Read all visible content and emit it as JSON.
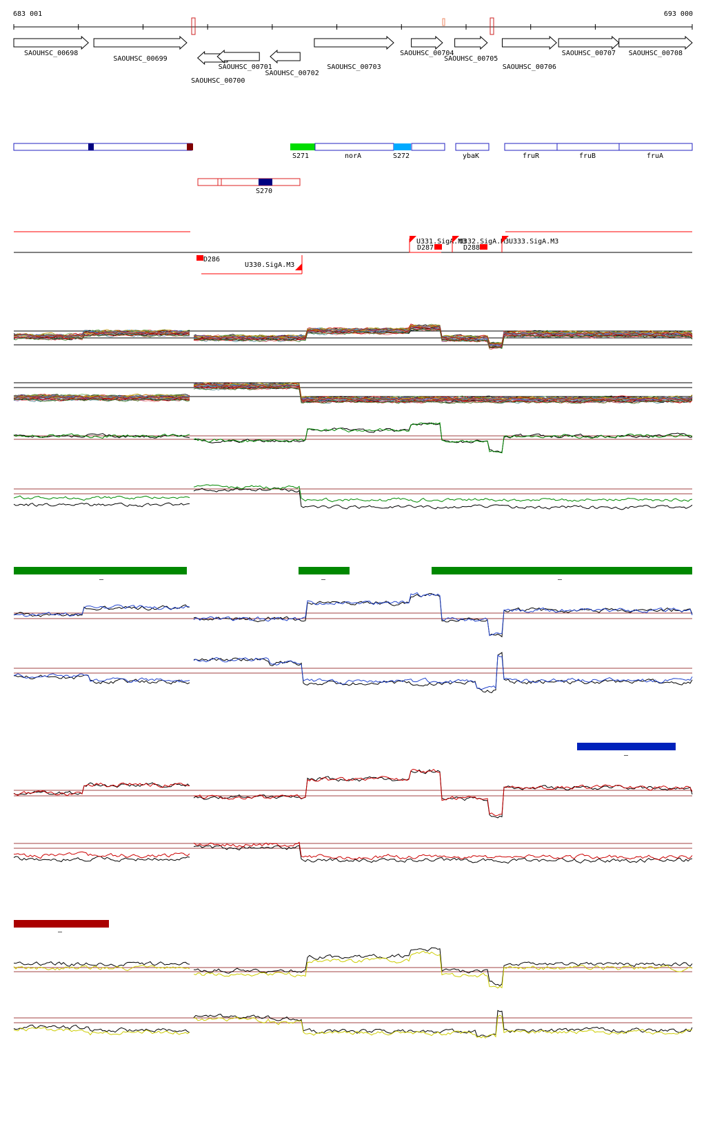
{
  "coords": {
    "start": "683 001",
    "end": "693 000"
  },
  "colors": {
    "blue_box": "#2020c0",
    "dark_blue_mark": "#000080",
    "dark_red_mark": "#800000",
    "green_region": "#00dd00",
    "cyan_region": "#00aaff",
    "red": "#ff0000",
    "threshold_brown": "#a04040",
    "green_bar": "#008800",
    "blue_bar": "#0022bb",
    "darkred_bar": "#aa0000",
    "yellow": "#bbbb00"
  },
  "genes_forward": [
    {
      "name": "SAOUHSC_00698",
      "start": 0.0,
      "end": 0.11
    },
    {
      "name": "SAOUHSC_00699",
      "start": 0.118,
      "end": 0.255
    },
    {
      "name": "SAOUHSC_00703",
      "start": 0.443,
      "end": 0.56
    },
    {
      "name": "SAOUHSC_00704",
      "start": 0.586,
      "end": 0.632
    },
    {
      "name": "SAOUHSC_00705",
      "start": 0.65,
      "end": 0.698
    },
    {
      "name": "SAOUHSC_00706",
      "start": 0.72,
      "end": 0.8
    },
    {
      "name": "SAOUHSC_00707",
      "start": 0.803,
      "end": 0.892
    },
    {
      "name": "SAOUHSC_00708",
      "start": 0.892,
      "end": 1.0
    }
  ],
  "genes_reverse": [
    {
      "name": "SAOUHSC_00700",
      "start": 0.271,
      "end": 0.315
    },
    {
      "name": "SAOUHSC_00701",
      "start": 0.3,
      "end": 0.362
    },
    {
      "name": "SAOUHSC_00702",
      "start": 0.378,
      "end": 0.422
    }
  ],
  "operon_labels": [
    "S271",
    "norA",
    "S272",
    "ybaK",
    "fruR",
    "fruB",
    "fruA"
  ],
  "antisense_label": "S270",
  "promoter_labels": [
    "D286",
    "U330.SigA.M3",
    "U331.SigA.M3",
    "D287",
    "U332.SigA.M3",
    "D288",
    "U333.SigA.M3"
  ],
  "condition_bar_labels": {
    "green": [
      "–",
      "–",
      "–"
    ],
    "blue": [
      "–"
    ],
    "darkred": [
      "–"
    ]
  },
  "tracks": {
    "multi_top": {
      "colors": [
        "#000000",
        "#e06666",
        "#6aa84f",
        "#3d85c6",
        "#e69138",
        "#8e7cc3",
        "#45818e",
        "#cc0000",
        "#38761d",
        "#bf9000",
        "#674ea7",
        "#a61c00"
      ]
    },
    "pair_green": {
      "secondary": "#008800"
    },
    "pair_blue": {
      "secondary": "#2244cc"
    },
    "pair_red": {
      "secondary": "#cc0000"
    },
    "pair_yellow": {
      "secondary": "#cccc00"
    }
  }
}
